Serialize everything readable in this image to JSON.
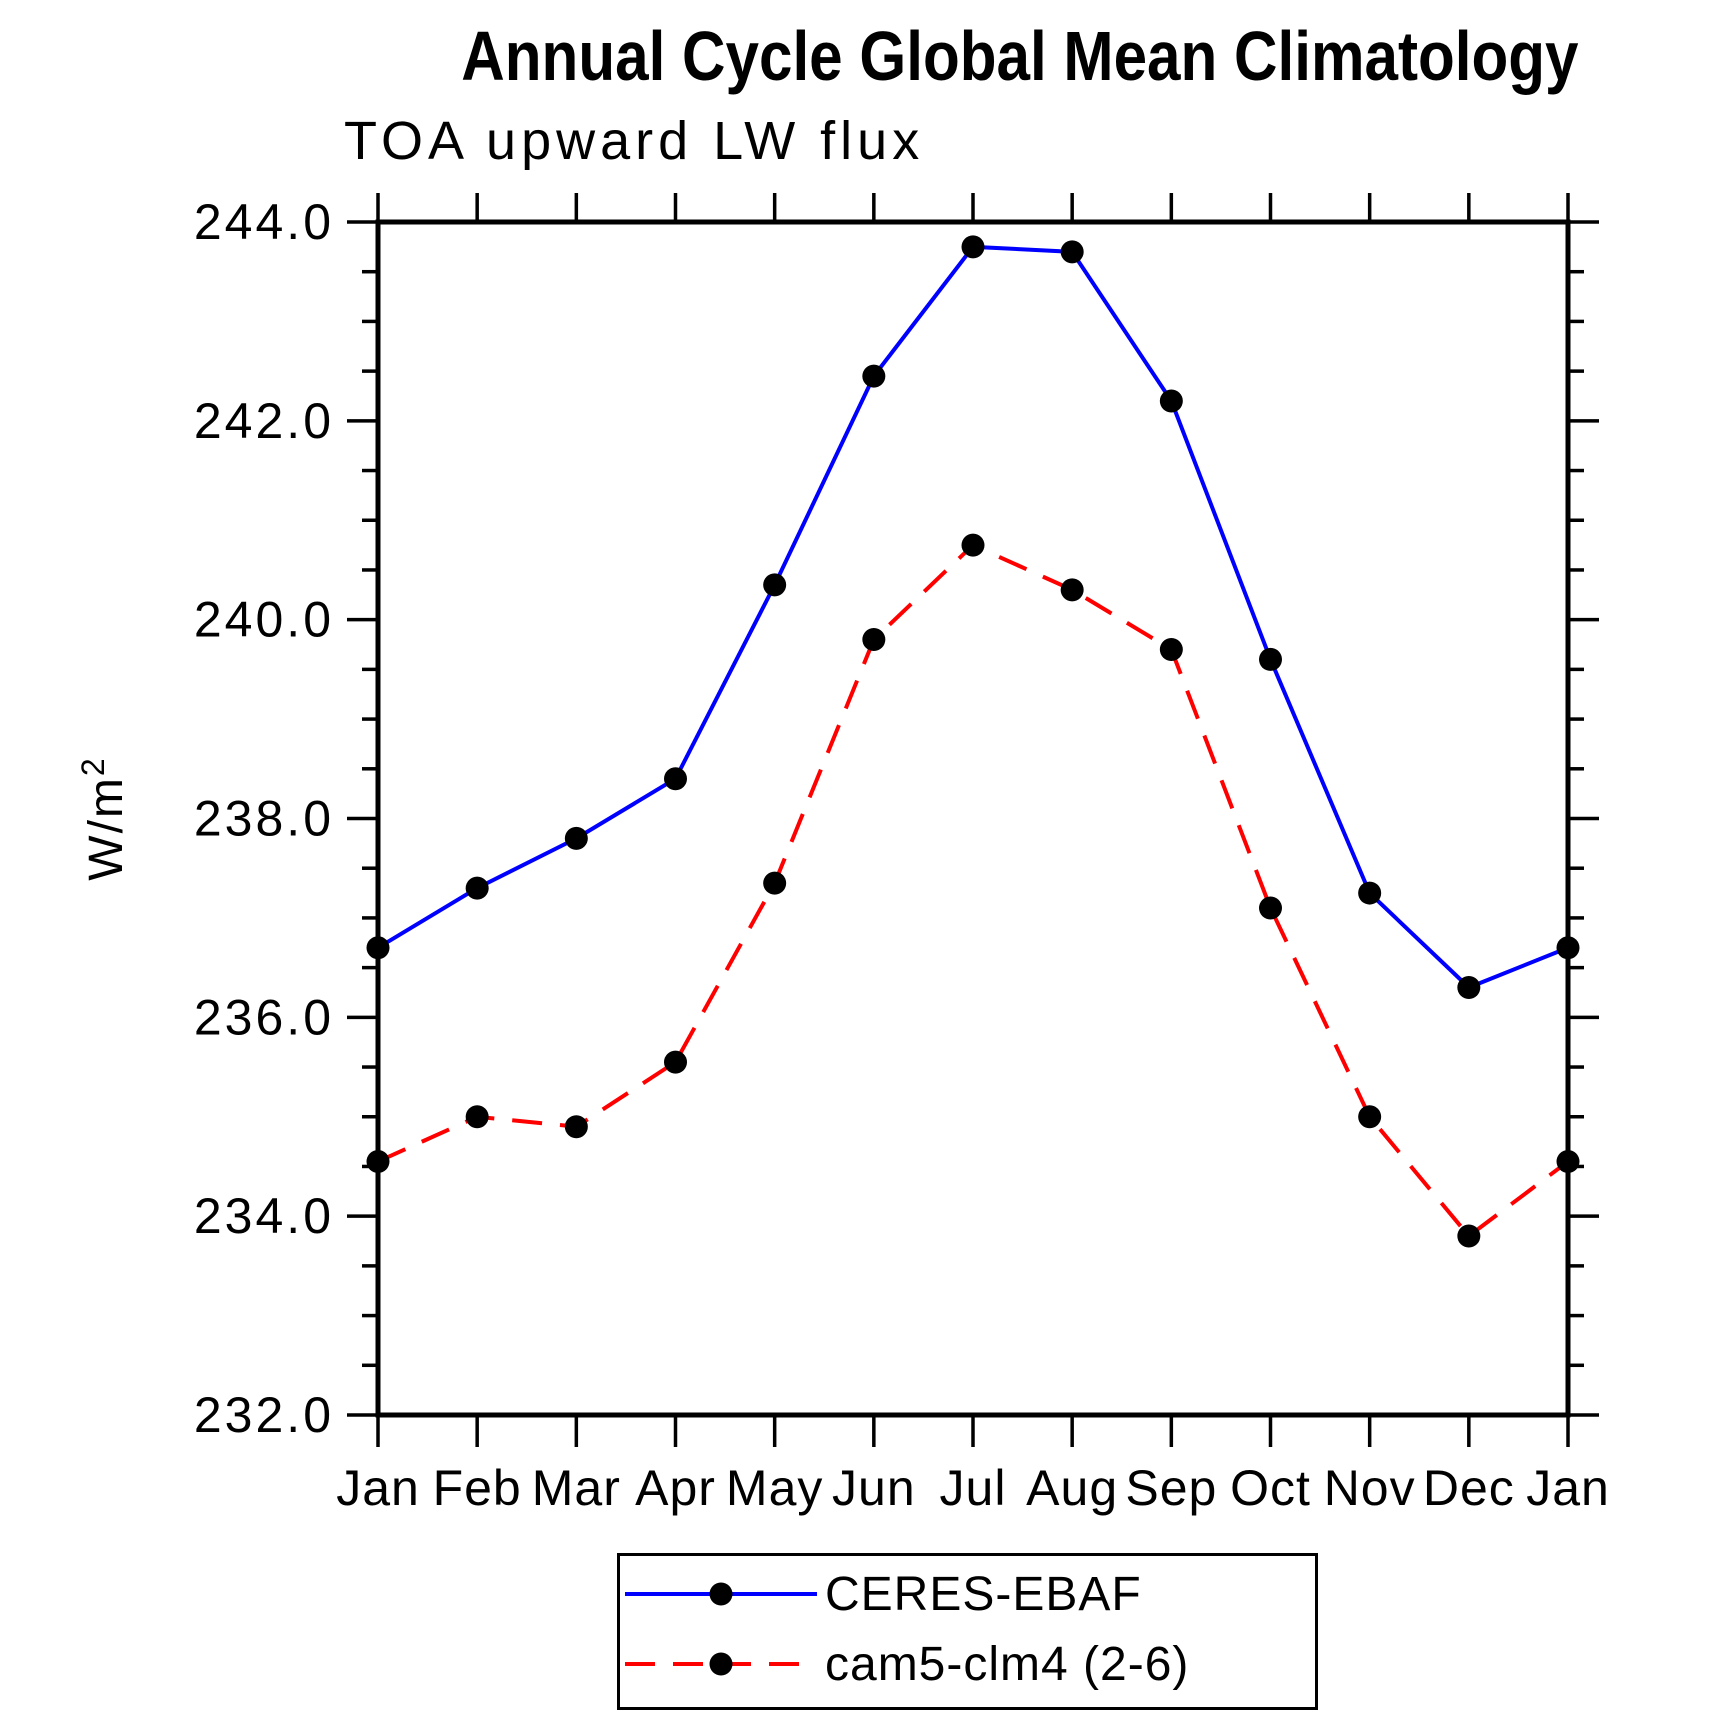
{
  "chart_data": {
    "type": "line",
    "title": "Annual Cycle Global Mean Climatology",
    "subtitle": "TOA upward LW flux",
    "ylabel": "W/m²",
    "categories": [
      "Jan",
      "Feb",
      "Mar",
      "Apr",
      "May",
      "Jun",
      "Jul",
      "Aug",
      "Sep",
      "Oct",
      "Nov",
      "Dec",
      "Jan"
    ],
    "series": [
      {
        "name": "CERES-EBAF",
        "color": "#0000ff",
        "line_style": "solid",
        "values": [
          236.7,
          237.3,
          237.8,
          238.4,
          240.35,
          242.45,
          243.75,
          243.7,
          242.2,
          239.6,
          237.25,
          236.3,
          236.7
        ]
      },
      {
        "name": "cam5-clm4 (2-6)",
        "color": "#ff0000",
        "line_style": "dashed",
        "values": [
          234.55,
          235.0,
          234.9,
          235.55,
          237.35,
          239.8,
          240.75,
          240.3,
          239.7,
          237.1,
          235.0,
          233.8,
          234.55
        ]
      }
    ],
    "ylim": [
      232.0,
      244.0
    ],
    "ytick_major": 2.0,
    "ytick_minor": 0.5,
    "ytick_labels": [
      "232.0",
      "234.0",
      "236.0",
      "238.0",
      "240.0",
      "242.0",
      "244.0"
    ],
    "marker_color": "#000000",
    "axis_color": "#000000",
    "grid": false,
    "legend_position": "bottom-center"
  }
}
